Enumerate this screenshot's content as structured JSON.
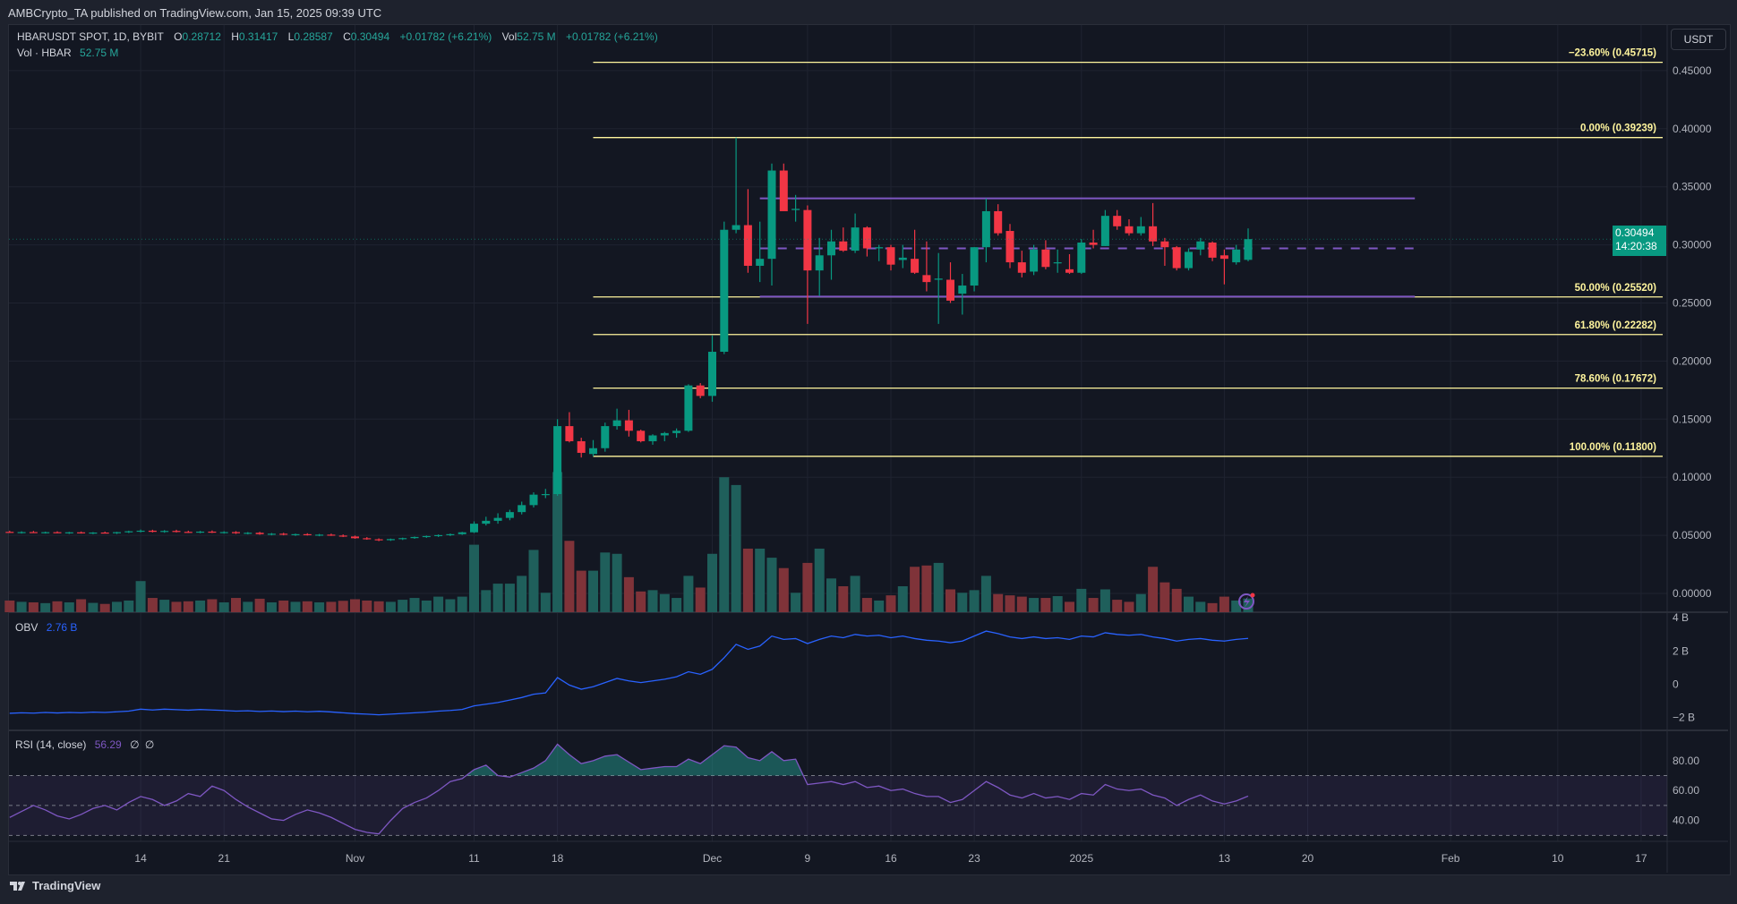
{
  "header": {
    "published": "AMBCrypto_TA published on TradingView.com, Jan 15, 2025 09:39 UTC"
  },
  "legend": {
    "symbol": "HBARUSDT SPOT, 1D, BYBIT",
    "o_label": "O",
    "o": "0.28712",
    "h_label": "H",
    "h": "0.31417",
    "l_label": "L",
    "l": "0.28587",
    "c_label": "C",
    "c": "0.30494",
    "change": "+0.01782 (+6.21%)",
    "vol_label": "Vol",
    "vol": "52.75 M",
    "vol_change": "+0.01782 (+6.21%)",
    "vol_series_label": "Vol · HBAR",
    "vol_series_value": "52.75 M"
  },
  "axis": {
    "currency": "USDT",
    "last_price": "0.30494",
    "countdown": "14:20:38"
  },
  "obv_legend": {
    "label": "OBV",
    "value": "2.76 B"
  },
  "rsi_legend": {
    "label": "RSI (14, close)",
    "value": "56.29",
    "extra1": "∅",
    "extra2": "∅"
  },
  "branding": {
    "logo_text": "TradingView"
  },
  "colors": {
    "up": "#089981",
    "down": "#f23645",
    "fib": "#fff59d",
    "range": "#7e57c2",
    "obv": "#2962ff",
    "rsi": "#7e57c2"
  },
  "chart_data": [
    {
      "type": "candlestick",
      "title": "HBARUSDT SPOT, 1D, BYBIT",
      "ylabel": "USDT",
      "ylim": [
        -0.016,
        0.49
      ],
      "yticks": [
        "0.45000",
        "0.40000",
        "0.35000",
        "0.30000",
        "0.25000",
        "0.20000",
        "0.15000",
        "0.10000",
        "0.05000",
        "0.00000"
      ],
      "ytick_values": [
        0.45,
        0.4,
        0.35,
        0.3,
        0.25,
        0.2,
        0.15,
        0.1,
        0.05,
        0.0
      ],
      "xticks": [
        {
          "label": "14",
          "i": 11
        },
        {
          "label": "21",
          "i": 18
        },
        {
          "label": "Nov",
          "i": 29
        },
        {
          "label": "11",
          "i": 39
        },
        {
          "label": "18",
          "i": 46
        },
        {
          "label": "Dec",
          "i": 59
        },
        {
          "label": "9",
          "i": 67
        },
        {
          "label": "16",
          "i": 74
        },
        {
          "label": "23",
          "i": 81
        },
        {
          "label": "2025",
          "i": 90
        },
        {
          "label": "13",
          "i": 102
        },
        {
          "label": "20",
          "i": 109
        },
        {
          "label": "Feb",
          "i": 121
        },
        {
          "label": "10",
          "i": 130
        },
        {
          "label": "17",
          "i": 137
        }
      ],
      "candle_fields": [
        "open",
        "high",
        "low",
        "close",
        "volume_M"
      ],
      "candles": [
        [
          0.053,
          0.054,
          0.052,
          0.0525,
          45
        ],
        [
          0.0525,
          0.0535,
          0.0515,
          0.0528,
          40
        ],
        [
          0.0528,
          0.0538,
          0.052,
          0.0522,
          38
        ],
        [
          0.0522,
          0.0532,
          0.0515,
          0.0527,
          35
        ],
        [
          0.0527,
          0.0535,
          0.0518,
          0.052,
          42
        ],
        [
          0.052,
          0.053,
          0.0512,
          0.0526,
          38
        ],
        [
          0.0526,
          0.0533,
          0.0515,
          0.0518,
          50
        ],
        [
          0.0518,
          0.0528,
          0.051,
          0.0524,
          36
        ],
        [
          0.0524,
          0.0532,
          0.0516,
          0.052,
          32
        ],
        [
          0.052,
          0.053,
          0.0512,
          0.0527,
          40
        ],
        [
          0.0527,
          0.054,
          0.052,
          0.0535,
          45
        ],
        [
          0.0535,
          0.055,
          0.0525,
          0.054,
          120
        ],
        [
          0.054,
          0.0548,
          0.0525,
          0.053,
          55
        ],
        [
          0.053,
          0.0545,
          0.0522,
          0.0538,
          48
        ],
        [
          0.0538,
          0.0548,
          0.0525,
          0.053,
          40
        ],
        [
          0.053,
          0.054,
          0.052,
          0.0526,
          42
        ],
        [
          0.0526,
          0.0538,
          0.0518,
          0.0532,
          45
        ],
        [
          0.0532,
          0.0542,
          0.052,
          0.0524,
          50
        ],
        [
          0.0524,
          0.0535,
          0.0515,
          0.0528,
          38
        ],
        [
          0.0528,
          0.0536,
          0.0512,
          0.0518,
          55
        ],
        [
          0.0518,
          0.0528,
          0.0508,
          0.0522,
          40
        ],
        [
          0.0522,
          0.053,
          0.0505,
          0.051,
          52
        ],
        [
          0.051,
          0.052,
          0.05,
          0.0514,
          38
        ],
        [
          0.0514,
          0.0522,
          0.05,
          0.0505,
          45
        ],
        [
          0.0505,
          0.0515,
          0.0495,
          0.051,
          40
        ],
        [
          0.051,
          0.0518,
          0.0498,
          0.0502,
          42
        ],
        [
          0.0502,
          0.0512,
          0.0492,
          0.0506,
          38
        ],
        [
          0.0506,
          0.0515,
          0.0495,
          0.0498,
          40
        ],
        [
          0.0498,
          0.0508,
          0.0485,
          0.049,
          44
        ],
        [
          0.049,
          0.0498,
          0.047,
          0.0475,
          50
        ],
        [
          0.0475,
          0.0485,
          0.0462,
          0.0466,
          45
        ],
        [
          0.0466,
          0.0474,
          0.045,
          0.0458,
          42
        ],
        [
          0.0458,
          0.0472,
          0.0452,
          0.0468,
          40
        ],
        [
          0.0468,
          0.048,
          0.046,
          0.0476,
          48
        ],
        [
          0.0476,
          0.049,
          0.047,
          0.0486,
          55
        ],
        [
          0.0486,
          0.0498,
          0.0478,
          0.0494,
          45
        ],
        [
          0.0494,
          0.0508,
          0.0486,
          0.0502,
          60
        ],
        [
          0.0502,
          0.0516,
          0.0494,
          0.051,
          50
        ],
        [
          0.051,
          0.053,
          0.0504,
          0.0526,
          60
        ],
        [
          0.0526,
          0.062,
          0.052,
          0.06,
          260
        ],
        [
          0.06,
          0.066,
          0.0585,
          0.0625,
          85
        ],
        [
          0.0625,
          0.069,
          0.06,
          0.065,
          110
        ],
        [
          0.065,
          0.072,
          0.063,
          0.07,
          110
        ],
        [
          0.07,
          0.079,
          0.068,
          0.076,
          140
        ],
        [
          0.076,
          0.087,
          0.074,
          0.085,
          240
        ],
        [
          0.085,
          0.09,
          0.082,
          0.0855,
          75
        ],
        [
          0.0855,
          0.15,
          0.084,
          0.144,
          540
        ],
        [
          0.144,
          0.156,
          0.13,
          0.131,
          275
        ],
        [
          0.131,
          0.134,
          0.117,
          0.121,
          160
        ],
        [
          0.12,
          0.132,
          0.118,
          0.125,
          160
        ],
        [
          0.125,
          0.147,
          0.122,
          0.144,
          230
        ],
        [
          0.144,
          0.159,
          0.141,
          0.149,
          225
        ],
        [
          0.149,
          0.158,
          0.135,
          0.14,
          135
        ],
        [
          0.14,
          0.141,
          0.13,
          0.131,
          80
        ],
        [
          0.131,
          0.137,
          0.128,
          0.136,
          85
        ],
        [
          0.136,
          0.139,
          0.131,
          0.138,
          70
        ],
        [
          0.138,
          0.142,
          0.134,
          0.14,
          55
        ],
        [
          0.14,
          0.18,
          0.139,
          0.179,
          140
        ],
        [
          0.179,
          0.181,
          0.168,
          0.17,
          95
        ],
        [
          0.17,
          0.222,
          0.165,
          0.208,
          225
        ],
        [
          0.208,
          0.32,
          0.206,
          0.313,
          520
        ],
        [
          0.313,
          0.3924,
          0.31,
          0.317,
          490
        ],
        [
          0.317,
          0.348,
          0.276,
          0.282,
          245
        ],
        [
          0.282,
          0.32,
          0.268,
          0.288,
          245
        ],
        [
          0.288,
          0.37,
          0.265,
          0.364,
          210
        ],
        [
          0.364,
          0.37,
          0.33,
          0.329,
          170
        ],
        [
          0.33,
          0.343,
          0.32,
          0.331,
          75
        ],
        [
          0.33,
          0.334,
          0.232,
          0.278,
          190
        ],
        [
          0.278,
          0.306,
          0.256,
          0.291,
          245
        ],
        [
          0.291,
          0.313,
          0.27,
          0.303,
          130
        ],
        [
          0.303,
          0.315,
          0.294,
          0.295,
          100
        ],
        [
          0.295,
          0.327,
          0.293,
          0.315,
          140
        ],
        [
          0.315,
          0.316,
          0.29,
          0.297,
          55
        ],
        [
          0.297,
          0.3,
          0.286,
          0.298,
          45
        ],
        [
          0.298,
          0.3,
          0.278,
          0.283,
          65
        ],
        [
          0.287,
          0.3,
          0.28,
          0.289,
          100
        ],
        [
          0.288,
          0.313,
          0.275,
          0.276,
          175
        ],
        [
          0.274,
          0.303,
          0.26,
          0.268,
          180
        ],
        [
          0.27,
          0.293,
          0.232,
          0.271,
          190
        ],
        [
          0.27,
          0.285,
          0.25,
          0.252,
          88
        ],
        [
          0.258,
          0.275,
          0.24,
          0.265,
          75
        ],
        [
          0.265,
          0.298,
          0.26,
          0.298,
          85
        ],
        [
          0.298,
          0.34,
          0.285,
          0.329,
          140
        ],
        [
          0.329,
          0.335,
          0.308,
          0.31,
          70
        ],
        [
          0.312,
          0.318,
          0.28,
          0.285,
          65
        ],
        [
          0.285,
          0.295,
          0.272,
          0.276,
          60
        ],
        [
          0.277,
          0.3,
          0.274,
          0.296,
          55
        ],
        [
          0.296,
          0.304,
          0.279,
          0.281,
          55
        ],
        [
          0.285,
          0.296,
          0.276,
          0.285,
          62
        ],
        [
          0.279,
          0.292,
          0.275,
          0.276,
          40
        ],
        [
          0.276,
          0.305,
          0.275,
          0.302,
          90
        ],
        [
          0.302,
          0.313,
          0.297,
          0.3,
          55
        ],
        [
          0.299,
          0.33,
          0.299,
          0.325,
          88
        ],
        [
          0.325,
          0.33,
          0.313,
          0.316,
          48
        ],
        [
          0.316,
          0.322,
          0.308,
          0.31,
          40
        ],
        [
          0.31,
          0.324,
          0.308,
          0.316,
          70
        ],
        [
          0.316,
          0.336,
          0.299,
          0.303,
          175
        ],
        [
          0.303,
          0.306,
          0.282,
          0.298,
          115
        ],
        [
          0.298,
          0.299,
          0.278,
          0.28,
          90
        ],
        [
          0.28,
          0.297,
          0.278,
          0.294,
          60
        ],
        [
          0.296,
          0.306,
          0.291,
          0.303,
          40
        ],
        [
          0.302,
          0.303,
          0.286,
          0.289,
          35
        ],
        [
          0.291,
          0.296,
          0.266,
          0.288,
          60
        ],
        [
          0.285,
          0.3,
          0.283,
          0.296,
          45
        ],
        [
          0.28712,
          0.31417,
          0.28587,
          0.30494,
          52.75
        ]
      ],
      "fib_levels": [
        {
          "label": "−23.60% (0.45715)",
          "value": 0.45715
        },
        {
          "label": "0.00% (0.39239)",
          "value": 0.39239
        },
        {
          "label": "50.00% (0.25520)",
          "value": 0.2552
        },
        {
          "label": "61.80% (0.22282)",
          "value": 0.22282
        },
        {
          "label": "78.60% (0.17672)",
          "value": 0.17672
        },
        {
          "label": "100.00% (0.11800)",
          "value": 0.118
        }
      ],
      "fib_start_i": 49,
      "range": {
        "high": 0.34,
        "mid": 0.297,
        "low": 0.2555,
        "start_i": 63,
        "end_i": 118
      }
    },
    {
      "type": "line",
      "title": "OBV",
      "unit": "B",
      "ylim": [
        -2.5,
        4.3
      ],
      "yticks": [
        "4 B",
        "2 B",
        "0",
        "−2 B"
      ],
      "ytick_values": [
        4,
        2,
        0,
        -2
      ],
      "values": [
        -1.75,
        -1.72,
        -1.74,
        -1.7,
        -1.73,
        -1.7,
        -1.72,
        -1.68,
        -1.7,
        -1.66,
        -1.62,
        -1.5,
        -1.55,
        -1.5,
        -1.53,
        -1.56,
        -1.52,
        -1.55,
        -1.58,
        -1.62,
        -1.6,
        -1.64,
        -1.61,
        -1.65,
        -1.62,
        -1.66,
        -1.63,
        -1.67,
        -1.72,
        -1.77,
        -1.8,
        -1.84,
        -1.8,
        -1.76,
        -1.72,
        -1.68,
        -1.62,
        -1.58,
        -1.52,
        -1.3,
        -1.2,
        -1.1,
        -0.95,
        -0.8,
        -0.6,
        -0.52,
        0.4,
        -0.05,
        -0.3,
        -0.15,
        0.1,
        0.35,
        0.2,
        0.1,
        0.2,
        0.3,
        0.45,
        0.75,
        0.6,
        0.9,
        1.6,
        2.4,
        2.1,
        2.3,
        2.9,
        2.7,
        2.75,
        2.45,
        2.7,
        2.9,
        2.8,
        3.0,
        2.9,
        2.95,
        2.8,
        2.9,
        2.75,
        2.65,
        2.6,
        2.5,
        2.6,
        2.9,
        3.2,
        3.05,
        2.85,
        2.75,
        2.85,
        2.75,
        2.8,
        2.7,
        2.9,
        2.85,
        3.1,
        3.0,
        2.95,
        3.0,
        2.85,
        2.75,
        2.6,
        2.7,
        2.75,
        2.65,
        2.6,
        2.7,
        2.76
      ]
    },
    {
      "type": "line",
      "title": "RSI (14, close)",
      "ylim": [
        25,
        97
      ],
      "yticks": [
        "80.00",
        "60.00",
        "40.00"
      ],
      "ytick_values": [
        80,
        60,
        40
      ],
      "bands": [
        70,
        50,
        30
      ],
      "values": [
        42,
        46,
        50,
        47,
        43,
        41,
        44,
        48,
        50,
        47,
        52,
        56,
        54,
        50,
        53,
        58,
        56,
        63,
        60,
        54,
        49,
        45,
        41,
        40,
        44,
        47,
        45,
        42,
        38,
        34,
        32,
        31,
        40,
        48,
        52,
        55,
        60,
        66,
        68,
        74,
        77,
        70,
        69,
        72,
        75,
        80,
        91,
        84,
        78,
        80,
        83,
        84,
        79,
        74,
        75,
        76,
        76,
        81,
        78,
        84,
        90,
        89,
        82,
        80,
        86,
        80,
        81,
        64,
        65,
        66,
        64,
        66,
        62,
        63,
        60,
        61,
        58,
        56,
        56,
        52,
        54,
        60,
        66,
        62,
        57,
        55,
        58,
        55,
        56,
        54,
        58,
        57,
        64,
        61,
        60,
        61,
        57,
        55,
        50,
        54,
        57,
        53,
        51,
        53,
        56.29
      ]
    }
  ]
}
